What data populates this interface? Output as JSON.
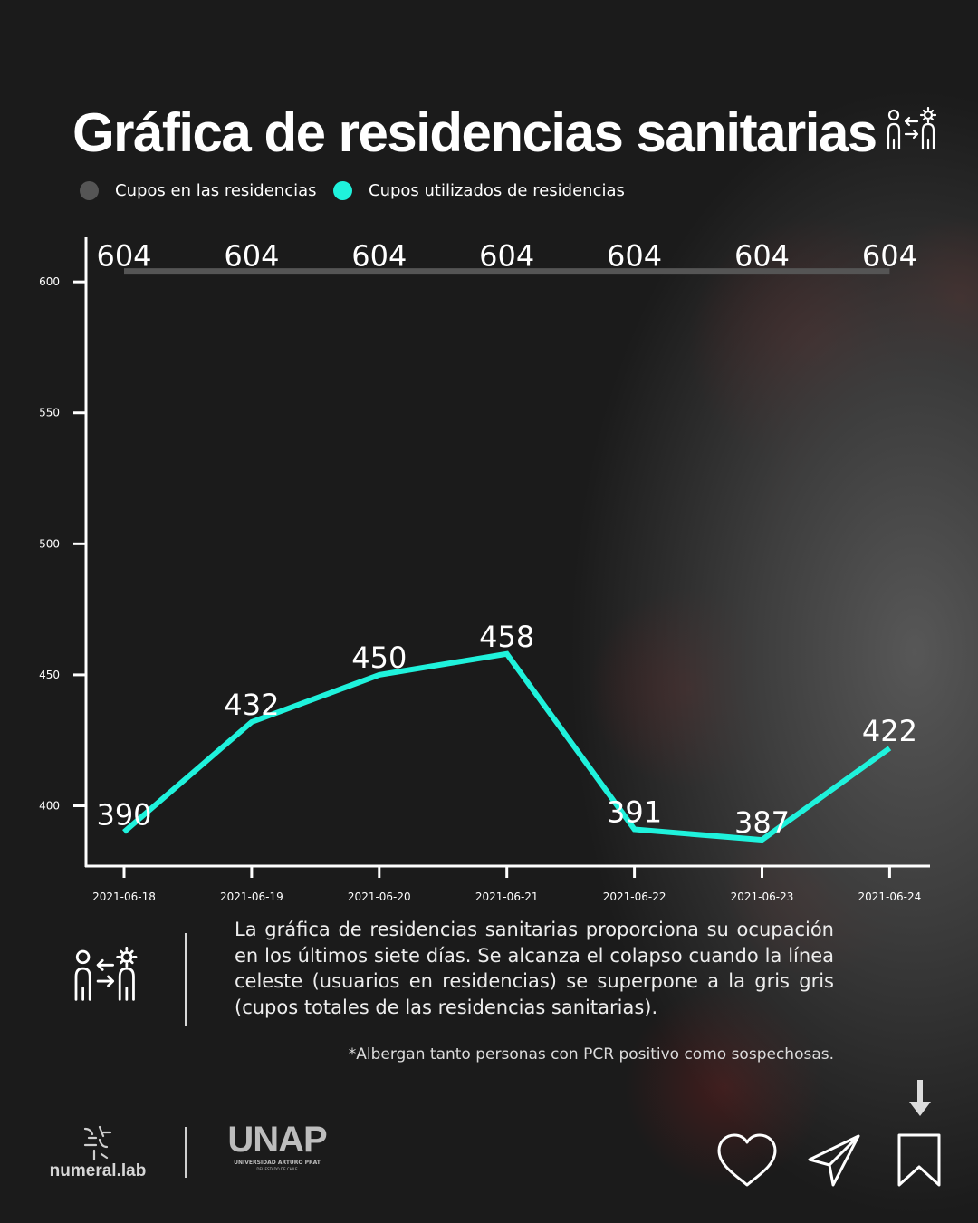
{
  "title": "Gráfica de residencias sanitarias",
  "icons": {
    "title_icon": "patient-transfer-virus-icon",
    "desc_icon": "patient-transfer-virus-icon",
    "actions": [
      "heart-icon",
      "send-icon",
      "bookmark-icon",
      "arrow-down-icon"
    ]
  },
  "legend": {
    "capacity": "Cupos en las residencias",
    "used": "Cupos utilizados de residencias"
  },
  "colors": {
    "capacity": "#555555",
    "used": "#1ff2dc",
    "text": "#ffffff"
  },
  "description": "La gráfica de residencias sanitarias proporciona su ocupación en los últimos siete días. Se alcanza el colapso cuando la línea celeste (usuarios en residencias) se superpone a la gris gris (cupos totales de las residencias sanitarias).",
  "note": "*Albergan tanto personas con PCR positivo como sospechosas.",
  "logos": {
    "numeral": "numeral.lab",
    "unap": "UNAP",
    "unap_sub": "UNIVERSIDAD ARTURO PRAT",
    "unap_sub2": "DEL ESTADO DE CHILE"
  },
  "chart_data": {
    "type": "line",
    "x": [
      "2021-06-18",
      "2021-06-19",
      "2021-06-20",
      "2021-06-21",
      "2021-06-22",
      "2021-06-23",
      "2021-06-24"
    ],
    "series": [
      {
        "name": "Cupos en las residencias",
        "values": [
          604,
          604,
          604,
          604,
          604,
          604,
          604
        ]
      },
      {
        "name": "Cupos utilizados de residencias",
        "values": [
          390,
          432,
          450,
          458,
          391,
          387,
          422
        ]
      }
    ],
    "yticks": [
      400,
      450,
      500,
      550,
      600
    ],
    "ylim": [
      377,
      617
    ],
    "grid": false,
    "legend_position": "top-left"
  }
}
